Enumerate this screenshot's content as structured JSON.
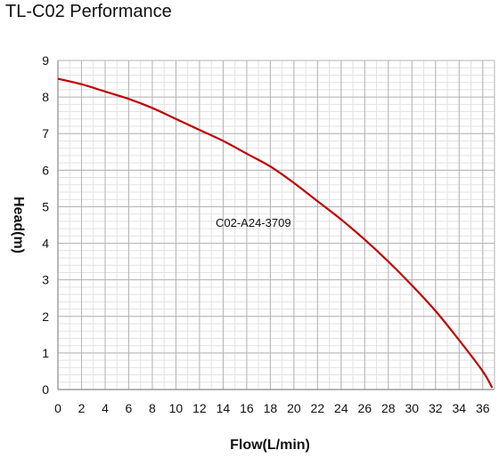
{
  "chart_data": {
    "type": "line",
    "title": "TL-C02 Performance",
    "xlabel": "Flow(L/min)",
    "ylabel": "Head(m)",
    "xlim": [
      0,
      37
    ],
    "ylim": [
      0,
      9
    ],
    "x_ticks": [
      0,
      2,
      4,
      6,
      8,
      10,
      12,
      14,
      16,
      18,
      20,
      22,
      24,
      26,
      28,
      30,
      32,
      34,
      36
    ],
    "y_ticks": [
      0,
      1,
      2,
      3,
      4,
      5,
      6,
      7,
      8,
      9
    ],
    "grid": true,
    "annotation": "C02-A24-3709",
    "series": [
      {
        "color": "#c00000",
        "x": [
          0,
          2,
          4,
          6,
          8,
          10,
          12,
          14,
          16,
          18,
          20,
          22,
          24,
          26,
          28,
          30,
          32,
          34,
          36,
          36.8
        ],
        "y": [
          8.5,
          8.35,
          8.15,
          7.95,
          7.7,
          7.4,
          7.1,
          6.8,
          6.45,
          6.1,
          5.65,
          5.15,
          4.65,
          4.1,
          3.5,
          2.85,
          2.15,
          1.35,
          0.5,
          0.05
        ]
      }
    ]
  }
}
